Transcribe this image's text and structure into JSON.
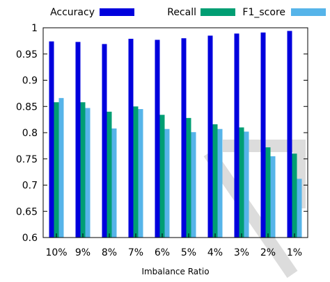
{
  "chart_data": {
    "type": "bar",
    "title": "",
    "xlabel": "Imbalance Ratio",
    "ylabel": "",
    "ylim": [
      0.6,
      1.0
    ],
    "y_ticks": [
      0.6,
      0.65,
      0.7,
      0.75,
      0.8,
      0.85,
      0.9,
      0.95,
      1.0
    ],
    "y_tick_labels": [
      "0.6",
      "0.65",
      "0.7",
      "0.75",
      "0.8",
      "0.85",
      "0.9",
      "0.95",
      "1"
    ],
    "categories": [
      "10%",
      "9%",
      "8%",
      "7%",
      "6%",
      "5%",
      "4%",
      "3%",
      "2%",
      "1%"
    ],
    "legend_position": "top",
    "grid": false,
    "series": [
      {
        "name": "Accuracy",
        "color": "#0000dd",
        "values": [
          0.974,
          0.973,
          0.969,
          0.979,
          0.977,
          0.98,
          0.985,
          0.989,
          0.991,
          0.994
        ]
      },
      {
        "name": "Recall",
        "color": "#009e73",
        "values": [
          0.858,
          0.858,
          0.84,
          0.85,
          0.834,
          0.828,
          0.816,
          0.81,
          0.772,
          0.76
        ]
      },
      {
        "name": "F1_score",
        "color": "#56b4e9",
        "values": [
          0.866,
          0.847,
          0.808,
          0.845,
          0.807,
          0.801,
          0.807,
          0.802,
          0.755,
          0.712
        ]
      }
    ]
  }
}
